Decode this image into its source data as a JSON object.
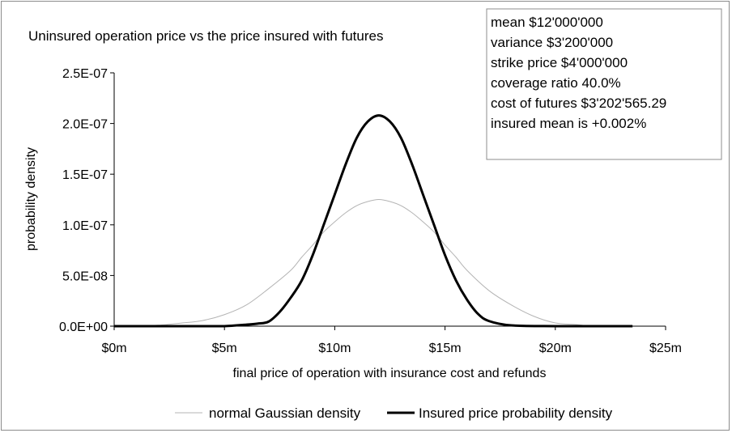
{
  "chart_data": {
    "type": "line",
    "title": "Uninsured operation price vs the price insured with futures",
    "xlabel": "final price of operation with insurance cost and refunds",
    "ylabel": "probability density",
    "xlim": [
      0,
      25000000
    ],
    "ylim": [
      0,
      2.5e-07
    ],
    "x_ticks": [
      {
        "value": 0,
        "label": "$0m"
      },
      {
        "value": 5000000,
        "label": "$5m"
      },
      {
        "value": 10000000,
        "label": "$10m"
      },
      {
        "value": 15000000,
        "label": "$15m"
      },
      {
        "value": 20000000,
        "label": "$20m"
      },
      {
        "value": 25000000,
        "label": "$25m"
      }
    ],
    "y_ticks": [
      {
        "value": 0,
        "label": "0.0E+00"
      },
      {
        "value": 5e-08,
        "label": "5.0E-08"
      },
      {
        "value": 1e-07,
        "label": "1.0E-07"
      },
      {
        "value": 1.5e-07,
        "label": "1.5E-07"
      },
      {
        "value": 2e-07,
        "label": "2.0E-07"
      },
      {
        "value": 2.5e-07,
        "label": "2.5E-07"
      }
    ],
    "gridlines": false,
    "legend_position": "bottom",
    "series": [
      {
        "name": "normal Gaussian density",
        "color": "#b4b4b4",
        "x": [
          0,
          1000000,
          2000000,
          3000000,
          4000000,
          5000000,
          6000000,
          7000000,
          8000000,
          8500000,
          9000000,
          9500000,
          10000000,
          10500000,
          11000000,
          11500000,
          12000000,
          12500000,
          13000000,
          13500000,
          14000000,
          14500000,
          15000000,
          15500000,
          16000000,
          17000000,
          18000000,
          19000000,
          20000000,
          21000000,
          21500000
        ],
        "y": [
          0,
          2.4e-10,
          9.5e-10,
          3e-09,
          5.5e-09,
          1.14e-08,
          2.1e-08,
          3.7e-08,
          5.5e-08,
          6.8e-08,
          8e-08,
          9.3e-08,
          1.03e-07,
          1.12e-07,
          1.19e-07,
          1.23e-07,
          1.25e-07,
          1.23e-07,
          1.19e-07,
          1.12e-07,
          1.03e-07,
          9.3e-08,
          8e-08,
          6.8e-08,
          5.5e-08,
          3.5e-08,
          2.1e-08,
          1e-08,
          3.2e-09,
          1.5e-09,
          0
        ]
      },
      {
        "name": "Insured price probability density",
        "color": "#000000",
        "x": [
          0,
          2000000,
          4000000,
          5000000,
          6000000,
          6500000,
          7000000,
          7500000,
          8000000,
          8500000,
          9000000,
          9500000,
          10000000,
          10500000,
          11000000,
          11500000,
          12000000,
          12500000,
          13000000,
          13500000,
          14000000,
          14500000,
          15000000,
          15500000,
          16000000,
          16500000,
          17000000,
          18000000,
          20000000,
          23500000
        ],
        "y": [
          0,
          0,
          0,
          0,
          1.5e-09,
          2.5e-09,
          4.5e-09,
          1.4e-08,
          2.8e-08,
          4.5e-08,
          7e-08,
          1e-07,
          1.3e-07,
          1.6e-07,
          1.86e-07,
          2.02e-07,
          2.08e-07,
          2.02e-07,
          1.86e-07,
          1.6e-07,
          1.3e-07,
          1e-07,
          7e-08,
          4.5e-08,
          2.6e-08,
          1.2e-08,
          5e-09,
          8e-10,
          0,
          0
        ]
      }
    ],
    "annotation": [
      "mean $12'000'000",
      "variance $3'200'000",
      "strike price $4'000'000",
      "coverage ratio 40.0%",
      "cost of futures $3'202'565.29",
      "insured mean is +0.002%"
    ]
  }
}
